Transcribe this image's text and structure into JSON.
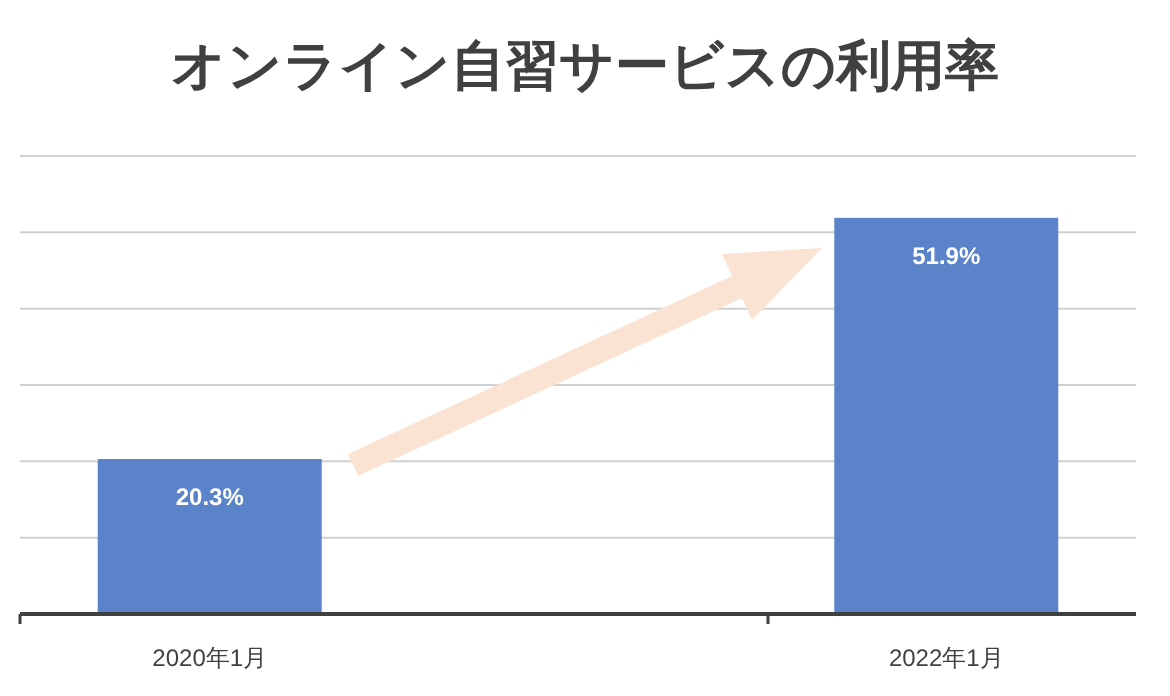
{
  "chart_data": {
    "type": "bar",
    "title": "オンライン自習サービスの利用率",
    "categories": [
      "2020年1月",
      "2022年1月"
    ],
    "values": [
      20.3,
      51.9
    ],
    "color": "#5b83c9",
    "value_labels": [
      "20.3%",
      "51.9%"
    ],
    "ylim": [
      0,
      60
    ],
    "yticks": [
      {
        "value": 0,
        "label": null
      },
      {
        "value": 10,
        "label": null
      },
      {
        "value": 20,
        "label": null
      },
      {
        "value": 30,
        "label": null
      },
      {
        "value": 40,
        "label": null
      },
      {
        "value": 50,
        "label": null
      },
      {
        "value": 60,
        "label": null
      }
    ],
    "grid": "y",
    "tick_labels": "x"
  }
}
